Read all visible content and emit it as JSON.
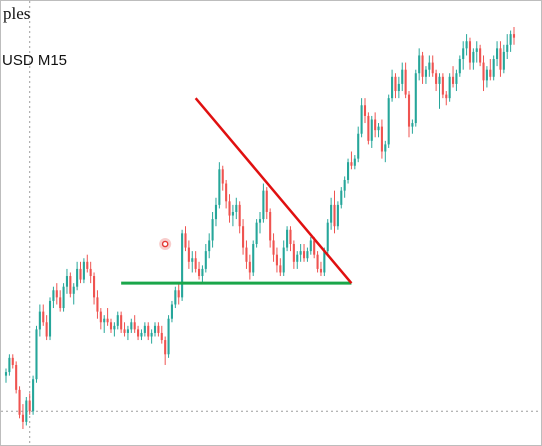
{
  "header": {
    "title_fragment": "ples",
    "symbol_timeframe": "USD M15"
  },
  "colors": {
    "bull": "#26a69a",
    "bear": "#ef5350",
    "resistance_line": "#e01010",
    "support_line": "#1aa64a",
    "crosshair": "#9e9e9e",
    "marker": "#e53935"
  },
  "chart_data": {
    "type": "candlestick",
    "title": "",
    "xlabel": "",
    "ylabel": "",
    "grid": false,
    "legend": "none",
    "price_scale": [
      0,
      100
    ],
    "candles": [
      [
        20,
        22,
        18,
        21
      ],
      [
        21,
        26,
        20,
        25
      ],
      [
        25,
        26,
        22,
        23
      ],
      [
        23,
        24,
        15,
        16
      ],
      [
        16,
        17,
        8,
        9
      ],
      [
        9,
        12,
        5,
        7
      ],
      [
        7,
        14,
        6,
        13
      ],
      [
        13,
        15,
        9,
        10
      ],
      [
        10,
        20,
        9,
        19
      ],
      [
        19,
        34,
        18,
        33
      ],
      [
        33,
        40,
        31,
        38
      ],
      [
        38,
        40,
        34,
        35
      ],
      [
        35,
        37,
        30,
        31
      ],
      [
        31,
        42,
        30,
        41
      ],
      [
        41,
        45,
        39,
        44
      ],
      [
        44,
        46,
        40,
        42
      ],
      [
        42,
        44,
        38,
        39
      ],
      [
        39,
        46,
        38,
        45
      ],
      [
        45,
        50,
        43,
        48
      ],
      [
        48,
        49,
        42,
        43
      ],
      [
        43,
        46,
        40,
        45
      ],
      [
        45,
        52,
        44,
        50
      ],
      [
        50,
        52,
        46,
        47
      ],
      [
        47,
        53,
        46,
        52
      ],
      [
        52,
        54,
        49,
        50
      ],
      [
        50,
        52,
        46,
        48
      ],
      [
        48,
        49,
        40,
        42
      ],
      [
        42,
        44,
        36,
        38
      ],
      [
        38,
        39,
        33,
        35
      ],
      [
        35,
        37,
        32,
        36
      ],
      [
        36,
        39,
        34,
        35
      ],
      [
        35,
        36,
        32,
        33
      ],
      [
        33,
        35,
        31,
        34
      ],
      [
        34,
        38,
        33,
        37
      ],
      [
        37,
        38,
        32,
        33
      ],
      [
        33,
        35,
        31,
        32
      ],
      [
        32,
        34,
        30,
        33
      ],
      [
        33,
        36,
        32,
        35
      ],
      [
        35,
        37,
        32,
        33
      ],
      [
        33,
        34,
        30,
        31
      ],
      [
        31,
        33,
        30,
        32
      ],
      [
        32,
        35,
        31,
        34
      ],
      [
        34,
        35,
        30,
        31
      ],
      [
        31,
        33,
        29,
        32
      ],
      [
        32,
        35,
        31,
        34
      ],
      [
        34,
        35,
        31,
        32
      ],
      [
        32,
        34,
        29,
        30
      ],
      [
        30,
        31,
        23,
        26
      ],
      [
        26,
        37,
        25,
        36
      ],
      [
        36,
        41,
        35,
        40
      ],
      [
        40,
        45,
        39,
        44
      ],
      [
        44,
        46,
        40,
        42
      ],
      [
        42,
        61,
        41,
        60
      ],
      [
        60,
        62,
        55,
        56
      ],
      [
        56,
        58,
        50,
        52
      ],
      [
        52,
        55,
        49,
        53
      ],
      [
        53,
        55,
        49,
        50
      ],
      [
        50,
        52,
        47,
        48
      ],
      [
        48,
        51,
        46,
        50
      ],
      [
        50,
        57,
        49,
        55
      ],
      [
        55,
        60,
        53,
        58
      ],
      [
        58,
        66,
        56,
        64
      ],
      [
        64,
        70,
        62,
        68
      ],
      [
        68,
        80,
        67,
        78
      ],
      [
        78,
        79,
        72,
        74
      ],
      [
        74,
        75,
        67,
        69
      ],
      [
        69,
        71,
        63,
        65
      ],
      [
        65,
        68,
        62,
        66
      ],
      [
        66,
        70,
        64,
        68
      ],
      [
        68,
        69,
        60,
        62
      ],
      [
        62,
        64,
        54,
        56
      ],
      [
        56,
        58,
        50,
        52
      ],
      [
        52,
        54,
        47,
        49
      ],
      [
        49,
        58,
        48,
        57
      ],
      [
        57,
        64,
        56,
        63
      ],
      [
        63,
        66,
        60,
        64
      ],
      [
        64,
        74,
        63,
        72
      ],
      [
        72,
        73,
        64,
        66
      ],
      [
        66,
        67,
        56,
        58
      ],
      [
        58,
        60,
        52,
        54
      ],
      [
        54,
        56,
        49,
        51
      ],
      [
        51,
        53,
        48,
        49
      ],
      [
        49,
        58,
        48,
        56
      ],
      [
        56,
        62,
        55,
        61
      ],
      [
        61,
        62,
        55,
        57
      ],
      [
        57,
        58,
        50,
        52
      ],
      [
        52,
        55,
        50,
        54
      ],
      [
        54,
        57,
        52,
        55
      ],
      [
        55,
        57,
        52,
        53
      ],
      [
        53,
        56,
        52,
        55
      ],
      [
        55,
        59,
        54,
        58
      ],
      [
        58,
        59,
        53,
        54
      ],
      [
        54,
        55,
        49,
        50
      ],
      [
        50,
        52,
        48,
        49
      ],
      [
        49,
        56,
        48,
        55
      ],
      [
        55,
        64,
        54,
        63
      ],
      [
        63,
        70,
        61,
        68
      ],
      [
        68,
        72,
        60,
        62
      ],
      [
        62,
        69,
        61,
        68
      ],
      [
        68,
        73,
        67,
        72
      ],
      [
        72,
        76,
        70,
        75
      ],
      [
        75,
        81,
        74,
        80
      ],
      [
        80,
        83,
        78,
        79
      ],
      [
        79,
        82,
        78,
        81
      ],
      [
        81,
        90,
        80,
        88
      ],
      [
        88,
        98,
        87,
        96
      ],
      [
        96,
        98,
        91,
        93
      ],
      [
        93,
        94,
        85,
        86
      ],
      [
        86,
        93,
        84,
        92
      ],
      [
        92,
        94,
        87,
        89
      ],
      [
        89,
        91,
        87,
        90
      ],
      [
        90,
        92,
        81,
        83
      ],
      [
        83,
        86,
        80,
        85
      ],
      [
        85,
        99,
        84,
        98
      ],
      [
        98,
        106,
        97,
        104
      ],
      [
        104,
        105,
        98,
        100
      ],
      [
        100,
        104,
        98,
        102
      ],
      [
        102,
        108,
        100,
        106
      ],
      [
        106,
        108,
        98,
        99
      ],
      [
        99,
        100,
        87,
        90
      ],
      [
        90,
        92,
        88,
        91
      ],
      [
        91,
        106,
        90,
        105
      ],
      [
        105,
        112,
        103,
        110
      ],
      [
        110,
        111,
        102,
        104
      ],
      [
        104,
        107,
        102,
        106
      ],
      [
        106,
        110,
        104,
        108
      ],
      [
        108,
        110,
        104,
        105
      ],
      [
        105,
        106,
        100,
        102
      ],
      [
        102,
        105,
        95,
        104
      ],
      [
        104,
        105,
        98,
        99
      ],
      [
        99,
        100,
        96,
        98
      ],
      [
        98,
        105,
        97,
        104
      ],
      [
        104,
        107,
        101,
        102
      ],
      [
        102,
        106,
        100,
        105
      ],
      [
        105,
        110,
        104,
        109
      ],
      [
        109,
        114,
        106,
        112
      ],
      [
        112,
        116,
        110,
        114
      ],
      [
        114,
        115,
        106,
        108
      ],
      [
        108,
        112,
        106,
        111
      ],
      [
        111,
        114,
        108,
        112
      ],
      [
        112,
        113,
        107,
        108
      ],
      [
        108,
        110,
        100,
        103
      ],
      [
        103,
        107,
        101,
        106
      ],
      [
        106,
        109,
        103,
        104
      ],
      [
        104,
        110,
        103,
        109
      ],
      [
        109,
        114,
        107,
        112
      ],
      [
        112,
        114,
        104,
        106
      ],
      [
        106,
        113,
        105,
        111
      ],
      [
        111,
        116,
        109,
        113
      ],
      [
        113,
        117,
        111,
        116
      ],
      [
        116,
        118,
        113,
        115
      ]
    ],
    "annotations": {
      "resistance_line": {
        "from": [
          56,
          98
        ],
        "to": [
          102,
          46
        ]
      },
      "support_line": {
        "from": [
          34,
          46
        ],
        "to": [
          102,
          46
        ]
      },
      "marker": {
        "index": 47,
        "price": 57
      },
      "crosshair": {
        "index": 7,
        "price": 10
      }
    }
  }
}
